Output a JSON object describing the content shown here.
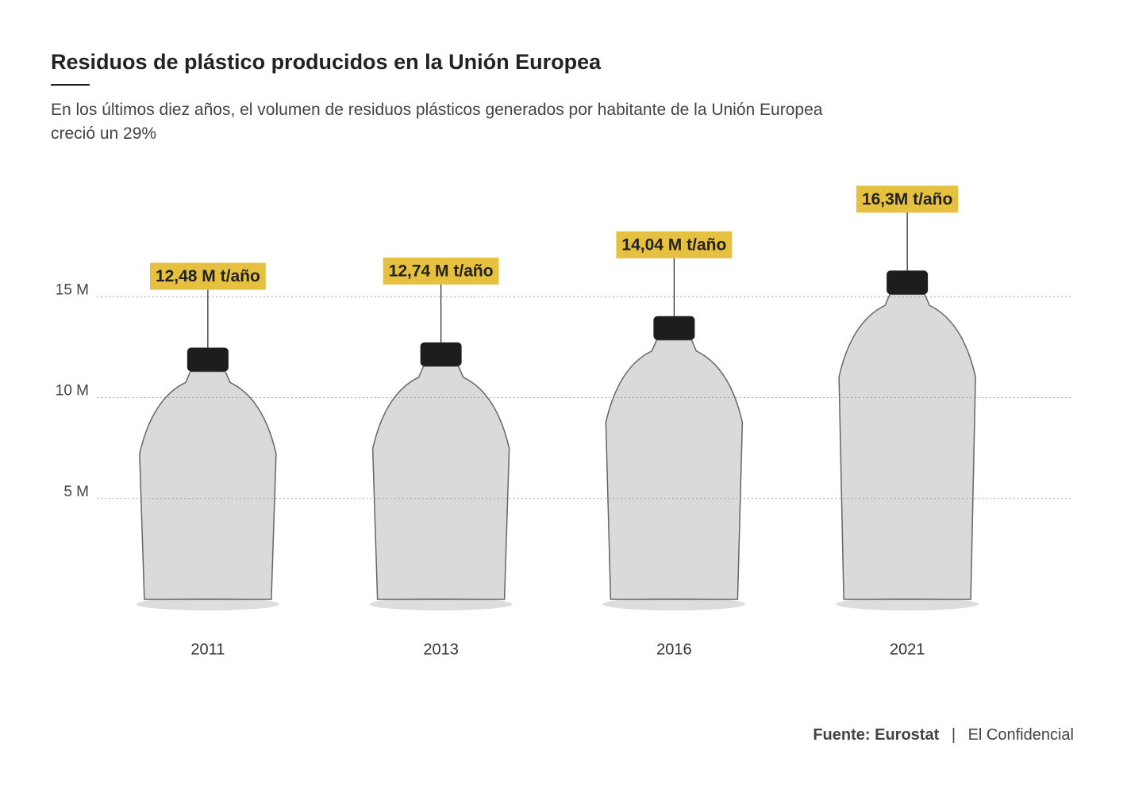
{
  "chart_data": {
    "type": "bottle",
    "title": "Residuos de plástico producidos en la Unión Europea",
    "subtitle": "En los últimos diez años, el volumen de residuos plásticos generados por habitante de la Unión Europea creció un 29%",
    "categories": [
      "2011",
      "2013",
      "2016",
      "2021"
    ],
    "values": [
      12.48,
      12.74,
      14.04,
      16.3
    ],
    "value_labels": [
      "12,48 M t/año",
      "12,74 M t/año",
      "14,04 M t/año",
      "16,3M t/año"
    ],
    "ylim": [
      0,
      18
    ],
    "yticks": [
      {
        "value": 5,
        "label": "5 M"
      },
      {
        "value": 10,
        "label": "10 M"
      },
      {
        "value": 15,
        "label": "15 M"
      }
    ],
    "grid": true,
    "color": "#e6c13f",
    "source": "Fuente: Eurostat",
    "source_separator": "|",
    "publisher": "El Confidencial"
  }
}
